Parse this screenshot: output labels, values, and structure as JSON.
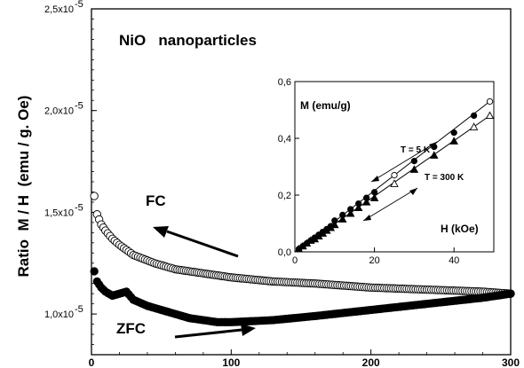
{
  "chart_data": [
    {
      "type": "scatter",
      "title": "NiO   nanoparticles",
      "xlabel": "",
      "ylabel": "Ratio  M / H  (emu / g. Oe)",
      "xlim": [
        0,
        300
      ],
      "ylim": [
        8e-06,
        2.5e-05
      ],
      "x_ticks": [
        {
          "value": 0,
          "label": "0"
        },
        {
          "value": 100,
          "label": "100"
        },
        {
          "value": 200,
          "label": "200"
        },
        {
          "value": 300,
          "label": "300"
        }
      ],
      "y_ticks": [
        {
          "value": 1e-05,
          "mant": "1,0x10",
          "exp": "-5"
        },
        {
          "value": 1.5e-05,
          "mant": "1,5x10",
          "exp": "-5"
        },
        {
          "value": 2e-05,
          "mant": "2,0x10",
          "exp": "-5"
        },
        {
          "value": 2.5e-05,
          "mant": "2,5x10",
          "exp": "-5"
        }
      ],
      "series": [
        {
          "name": "FC",
          "marker": "open-circle",
          "x": [
            2,
            4,
            7,
            10,
            15,
            20,
            30,
            45,
            60,
            80,
            100,
            130,
            160,
            200,
            240,
            280,
            300
          ],
          "y": [
            1.58e-05,
            1.49e-05,
            1.44e-05,
            1.41e-05,
            1.37e-05,
            1.34e-05,
            1.29e-05,
            1.25e-05,
            1.22e-05,
            1.2e-05,
            1.18e-05,
            1.16e-05,
            1.15e-05,
            1.13e-05,
            1.12e-05,
            1.11e-05,
            1.1e-05
          ]
        },
        {
          "name": "ZFC",
          "marker": "filled-circle",
          "x": [
            2,
            4,
            7,
            10,
            15,
            20,
            25,
            30,
            40,
            50,
            60,
            70,
            80,
            90,
            100,
            130,
            160,
            200,
            240,
            280,
            300
          ],
          "y": [
            1.21e-05,
            1.16e-05,
            1.13e-05,
            1.11e-05,
            1.09e-05,
            1.1e-05,
            1.11e-05,
            1.07e-05,
            1.04e-05,
            1.02e-05,
            1e-05,
            9.8e-06,
            9.7e-06,
            9.6e-06,
            9.6e-06,
            9.7e-06,
            9.9e-06,
            1.02e-05,
            1.05e-05,
            1.08e-05,
            1.1e-05
          ]
        }
      ]
    },
    {
      "type": "scatter",
      "title": "",
      "xlabel": "H (kOe)",
      "ylabel": "M (emu/g)",
      "xlim": [
        0,
        50
      ],
      "ylim": [
        0,
        0.6
      ],
      "x_ticks": [
        {
          "value": 0,
          "label": "0"
        },
        {
          "value": 20,
          "label": "20"
        },
        {
          "value": 40,
          "label": "40"
        }
      ],
      "y_ticks": [
        {
          "value": 0.0,
          "label": "0,0"
        },
        {
          "value": 0.2,
          "label": "0,2"
        },
        {
          "value": 0.4,
          "label": "0,4"
        },
        {
          "value": 0.6,
          "label": "0,6"
        }
      ],
      "series": [
        {
          "name": "T = 5 K",
          "marker": "circle",
          "x": [
            1,
            2,
            3,
            4,
            5,
            6,
            7,
            8,
            9,
            10,
            12,
            14,
            16,
            18,
            20,
            25,
            30,
            35,
            40,
            45,
            49
          ],
          "y": [
            0.01,
            0.02,
            0.03,
            0.04,
            0.05,
            0.06,
            0.07,
            0.08,
            0.09,
            0.11,
            0.13,
            0.15,
            0.17,
            0.19,
            0.21,
            0.27,
            0.32,
            0.37,
            0.42,
            0.48,
            0.53
          ]
        },
        {
          "name": "T = 300 K",
          "marker": "triangle",
          "x": [
            1,
            2,
            3,
            4,
            5,
            6,
            7,
            8,
            9,
            10,
            12,
            14,
            16,
            18,
            20,
            25,
            30,
            35,
            40,
            45,
            49
          ],
          "y": [
            0.01,
            0.02,
            0.03,
            0.04,
            0.045,
            0.055,
            0.065,
            0.075,
            0.085,
            0.095,
            0.115,
            0.135,
            0.155,
            0.175,
            0.19,
            0.24,
            0.29,
            0.34,
            0.39,
            0.44,
            0.48
          ]
        }
      ]
    }
  ]
}
